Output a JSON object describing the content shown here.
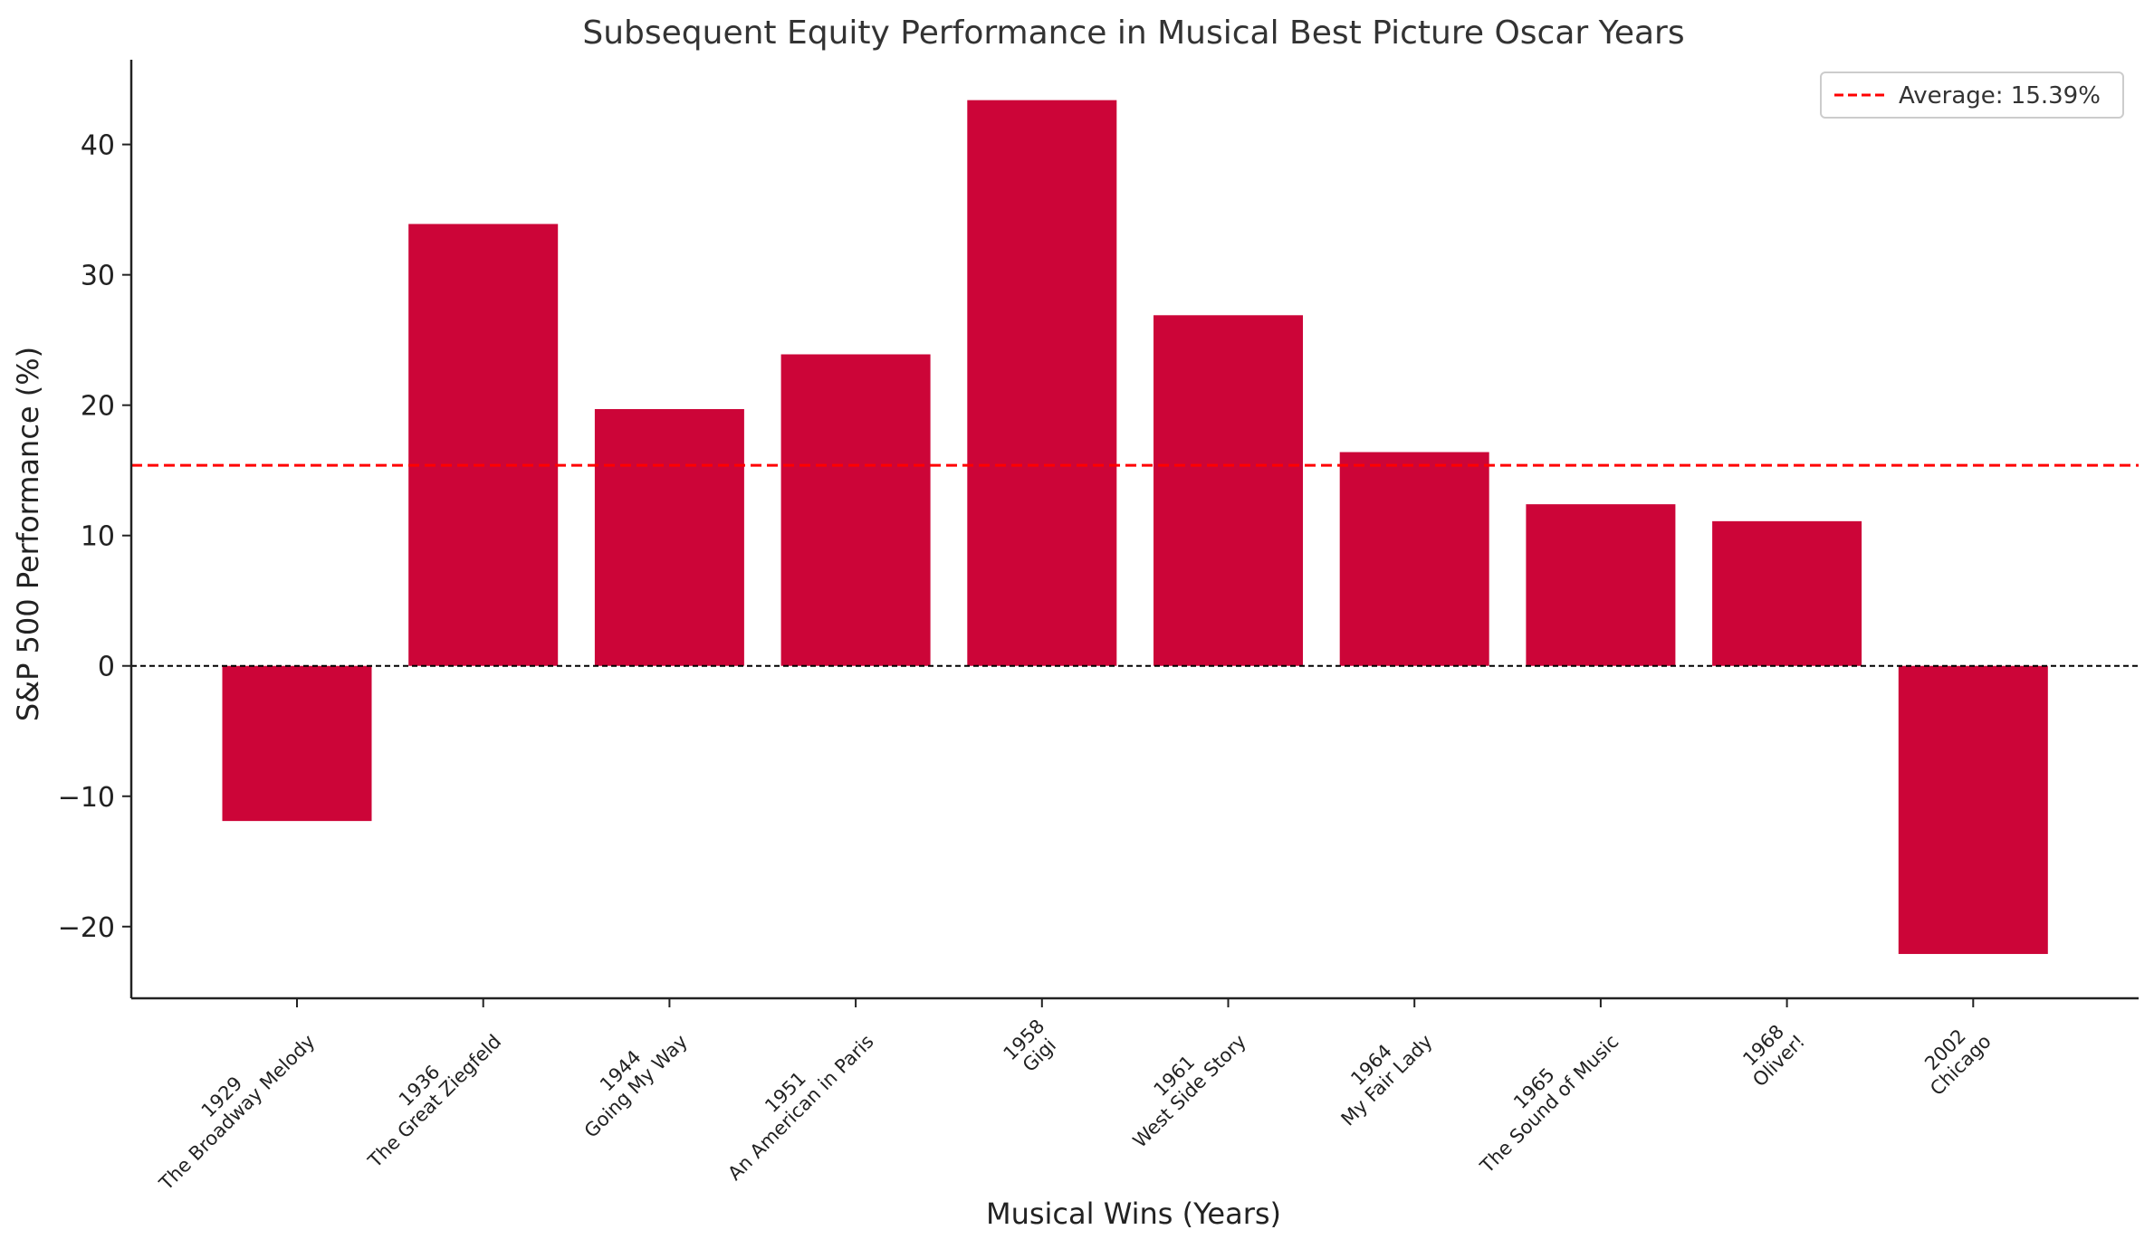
{
  "chart_data": {
    "type": "bar",
    "title": "Subsequent Equity Performance in Musical Best Picture Oscar Years",
    "xlabel": "Musical Wins (Years)",
    "ylabel": "S&P 500 Performance (%)",
    "ylim": [
      -25.5,
      46.5
    ],
    "yticks": [
      -20,
      -10,
      0,
      10,
      20,
      30,
      40
    ],
    "ytick_labels": [
      "−20",
      "−10",
      "0",
      "10",
      "20",
      "30",
      "40"
    ],
    "categories": [
      {
        "year": "1929",
        "film": "The Broadway Melody"
      },
      {
        "year": "1936",
        "film": "The Great Ziegfeld"
      },
      {
        "year": "1944",
        "film": "Going My Way"
      },
      {
        "year": "1951",
        "film": "An American in Paris"
      },
      {
        "year": "1958",
        "film": "Gigi"
      },
      {
        "year": "1961",
        "film": "West Side Story"
      },
      {
        "year": "1964",
        "film": "My Fair Lady"
      },
      {
        "year": "1965",
        "film": "The Sound of Music"
      },
      {
        "year": "1968",
        "film": "Oliver!"
      },
      {
        "year": "2002",
        "film": "Chicago"
      }
    ],
    "values": [
      -11.9,
      33.9,
      19.7,
      23.9,
      43.4,
      26.9,
      16.4,
      12.4,
      11.1,
      -22.1
    ],
    "bar_color": "#cc0538",
    "average": 15.39,
    "average_color": "#ff0000",
    "zero_line_color": "#000000",
    "legend": {
      "label": "Average: 15.39%",
      "placement": "top-right"
    },
    "grid": false
  }
}
